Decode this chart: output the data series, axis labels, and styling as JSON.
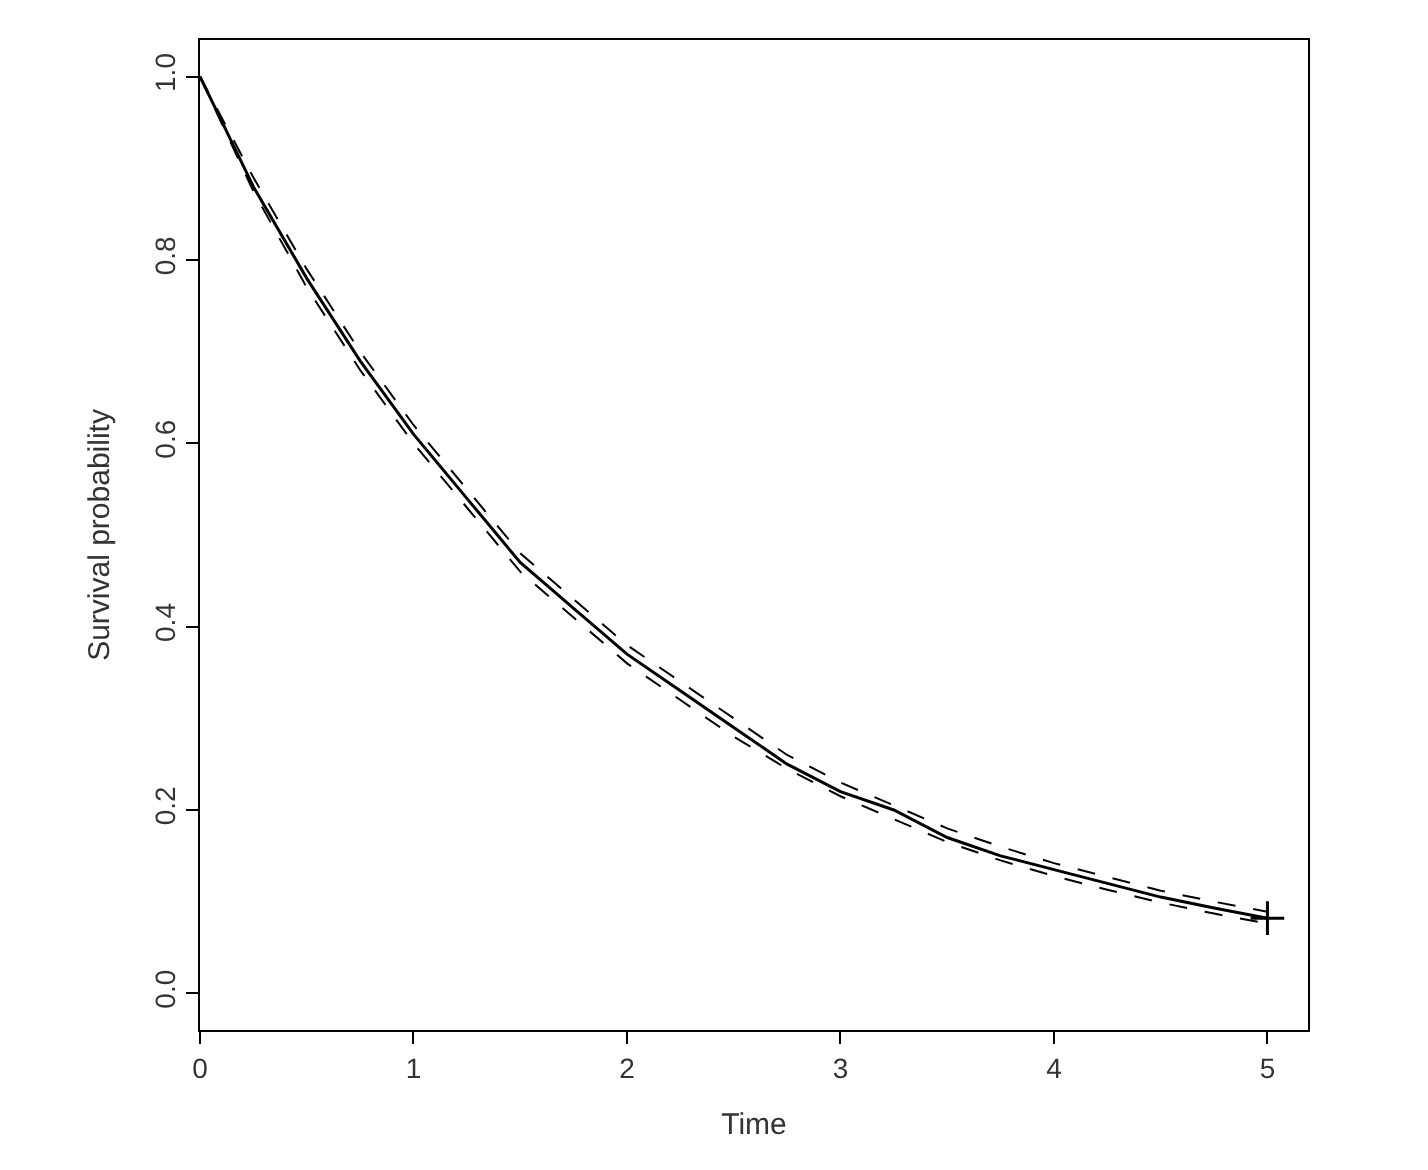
{
  "chart_data": {
    "type": "line",
    "xlabel": "Time",
    "ylabel": "Survival probability",
    "x": [
      0,
      0.25,
      0.5,
      0.75,
      1,
      1.25,
      1.5,
      1.75,
      2,
      2.25,
      2.5,
      2.75,
      3,
      3.25,
      3.5,
      3.75,
      4,
      4.25,
      4.5,
      4.75,
      5
    ],
    "series": [
      {
        "color": "#000000",
        "line_style": "solid",
        "values": [
          1.0,
          0.88,
          0.78,
          0.69,
          0.61,
          0.54,
          0.47,
          0.42,
          0.37,
          0.33,
          0.29,
          0.25,
          0.22,
          0.2,
          0.17,
          0.15,
          0.135,
          0.12,
          0.105,
          0.093,
          0.082
        ]
      },
      {
        "color": "#000000",
        "line_style": "dashed",
        "values": [
          1.0,
          0.875,
          0.77,
          0.68,
          0.6,
          0.53,
          0.46,
          0.41,
          0.36,
          0.32,
          0.28,
          0.245,
          0.215,
          0.19,
          0.165,
          0.145,
          0.128,
          0.113,
          0.099,
          0.087,
          0.076
        ]
      },
      {
        "color": "#000000",
        "line_style": "dashed",
        "values": [
          1.0,
          0.89,
          0.79,
          0.7,
          0.62,
          0.55,
          0.48,
          0.43,
          0.38,
          0.34,
          0.3,
          0.26,
          0.23,
          0.205,
          0.18,
          0.16,
          0.142,
          0.127,
          0.112,
          0.1,
          0.089
        ]
      },
      {
        "type": "scatter",
        "color": "#000000",
        "marker": "cross",
        "x": [
          5
        ],
        "values": [
          0.082
        ]
      }
    ],
    "xlim": [
      0,
      5.19
    ],
    "xticks": [
      0,
      1,
      2,
      3,
      4,
      5
    ],
    "ylim": [
      -0.04,
      1.04
    ],
    "yticks": [
      {
        "value": 0,
        "label": "0.0"
      },
      {
        "value": 0.2,
        "label": "0.2"
      },
      {
        "value": 0.4,
        "label": "0.4"
      },
      {
        "value": 0.6,
        "label": "0.6"
      },
      {
        "value": 0.8,
        "label": "0.8"
      },
      {
        "value": 1,
        "label": "1.0"
      }
    ],
    "marker": "none"
  }
}
